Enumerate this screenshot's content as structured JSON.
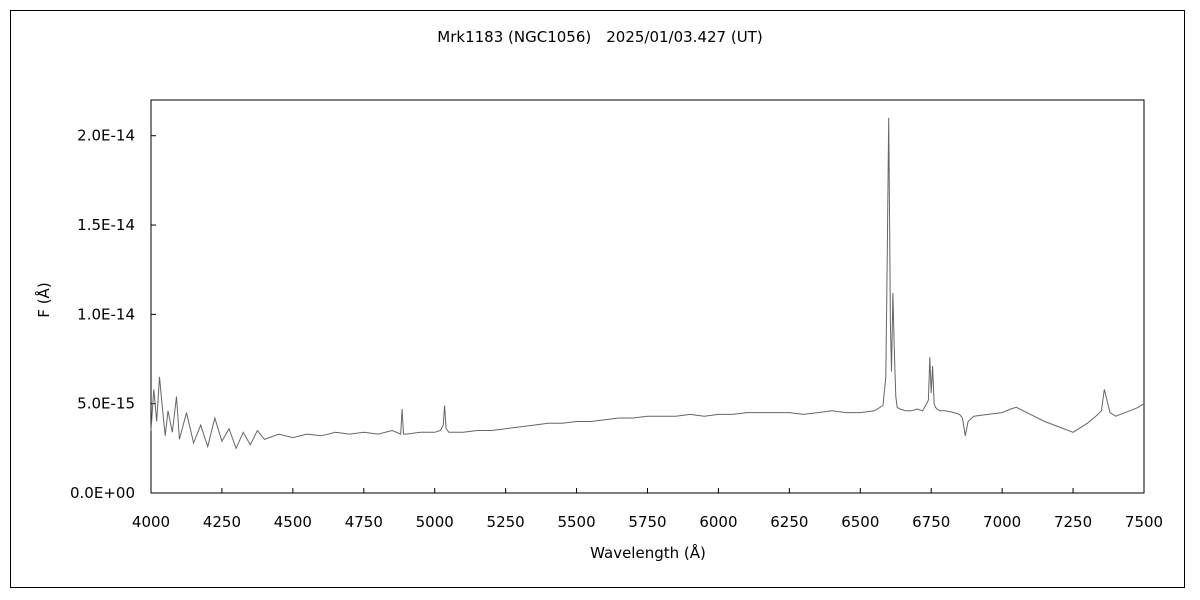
{
  "chart_data": {
    "type": "line",
    "title": "Mrk1183 (NGC1056)　2025/01/03.427 (UT)",
    "xlabel": "Wavelength (Å)",
    "ylabel": "F (Å)",
    "xlim": [
      4000,
      7500
    ],
    "ylim": [
      0,
      2.2e-14
    ],
    "x_ticks": [
      4000,
      4250,
      4500,
      4750,
      5000,
      5250,
      5500,
      5750,
      6000,
      6250,
      6500,
      6750,
      7000,
      7250,
      7500
    ],
    "x_tick_labels": [
      "4000",
      "4250",
      "4500",
      "4750",
      "5000",
      "5250",
      "5500",
      "5750",
      "6000",
      "6250",
      "6500",
      "6750",
      "7000",
      "7250",
      "7500"
    ],
    "y_ticks": [
      0,
      5e-15,
      1e-14,
      1.5e-14,
      2e-14
    ],
    "y_tick_labels": [
      "0.0E+00",
      "5.0E-15",
      "1.0E-14",
      "1.5E-14",
      "2.0E-14"
    ],
    "grid": false,
    "legend": "none",
    "line_color": "#666666",
    "series": [
      {
        "x": [
          4000,
          4010,
          4020,
          4030,
          4040,
          4050,
          4060,
          4075,
          4090,
          4100,
          4125,
          4150,
          4175,
          4200,
          4225,
          4250,
          4275,
          4300,
          4325,
          4350,
          4375,
          4400,
          4450,
          4500,
          4550,
          4600,
          4650,
          4700,
          4750,
          4800,
          4850,
          4880,
          4885,
          4890,
          4900,
          4950,
          5000,
          5020,
          5030,
          5035,
          5040,
          5050,
          5100,
          5150,
          5200,
          5250,
          5300,
          5350,
          5400,
          5450,
          5500,
          5550,
          5600,
          5650,
          5700,
          5750,
          5800,
          5850,
          5900,
          5950,
          6000,
          6050,
          6100,
          6150,
          6200,
          6250,
          6300,
          6350,
          6400,
          6450,
          6500,
          6550,
          6580,
          6590,
          6595,
          6600,
          6603,
          6606,
          6610,
          6615,
          6620,
          6625,
          6630,
          6640,
          6660,
          6680,
          6700,
          6720,
          6740,
          6745,
          6750,
          6755,
          6760,
          6765,
          6770,
          6780,
          6800,
          6830,
          6850,
          6860,
          6870,
          6880,
          6900,
          6950,
          7000,
          7030,
          7050,
          7100,
          7150,
          7200,
          7250,
          7300,
          7330,
          7350,
          7360,
          7380,
          7400,
          7450,
          7480,
          7500
        ],
        "y": [
          3.5e-15,
          5.8e-15,
          4e-15,
          6.5e-15,
          4.8e-15,
          3.2e-15,
          4.6e-15,
          3.4e-15,
          5.4e-15,
          3e-15,
          4.5e-15,
          2.8e-15,
          3.8e-15,
          2.6e-15,
          4.2e-15,
          2.9e-15,
          3.6e-15,
          2.5e-15,
          3.4e-15,
          2.7e-15,
          3.5e-15,
          3e-15,
          3.3e-15,
          3.1e-15,
          3.3e-15,
          3.2e-15,
          3.4e-15,
          3.3e-15,
          3.4e-15,
          3.3e-15,
          3.5e-15,
          3.3e-15,
          4.7e-15,
          3.3e-15,
          3.3e-15,
          3.4e-15,
          3.4e-15,
          3.5e-15,
          3.8e-15,
          4.9e-15,
          3.6e-15,
          3.4e-15,
          3.4e-15,
          3.5e-15,
          3.5e-15,
          3.6e-15,
          3.7e-15,
          3.8e-15,
          3.9e-15,
          3.9e-15,
          4e-15,
          4e-15,
          4.1e-15,
          4.2e-15,
          4.2e-15,
          4.3e-15,
          4.3e-15,
          4.3e-15,
          4.4e-15,
          4.3e-15,
          4.4e-15,
          4.4e-15,
          4.5e-15,
          4.5e-15,
          4.5e-15,
          4.5e-15,
          4.4e-15,
          4.5e-15,
          4.6e-15,
          4.5e-15,
          4.5e-15,
          4.6e-15,
          4.9e-15,
          6.5e-15,
          1.3e-14,
          2.1e-14,
          1.58e-14,
          9.5e-15,
          6.8e-15,
          1.12e-14,
          8e-15,
          5.4e-15,
          4.8e-15,
          4.7e-15,
          4.6e-15,
          4.6e-15,
          4.7e-15,
          4.6e-15,
          5.2e-15,
          7.6e-15,
          5.6e-15,
          7.1e-15,
          5e-15,
          4.8e-15,
          4.7e-15,
          4.6e-15,
          4.6e-15,
          4.5e-15,
          4.4e-15,
          4.2e-15,
          3.2e-15,
          4e-15,
          4.3e-15,
          4.4e-15,
          4.5e-15,
          4.7e-15,
          4.8e-15,
          4.4e-15,
          4e-15,
          3.7e-15,
          3.4e-15,
          3.9e-15,
          4.3e-15,
          4.6e-15,
          5.8e-15,
          4.5e-15,
          4.3e-15,
          4.6e-15,
          4.8e-15,
          5e-15
        ]
      }
    ]
  }
}
